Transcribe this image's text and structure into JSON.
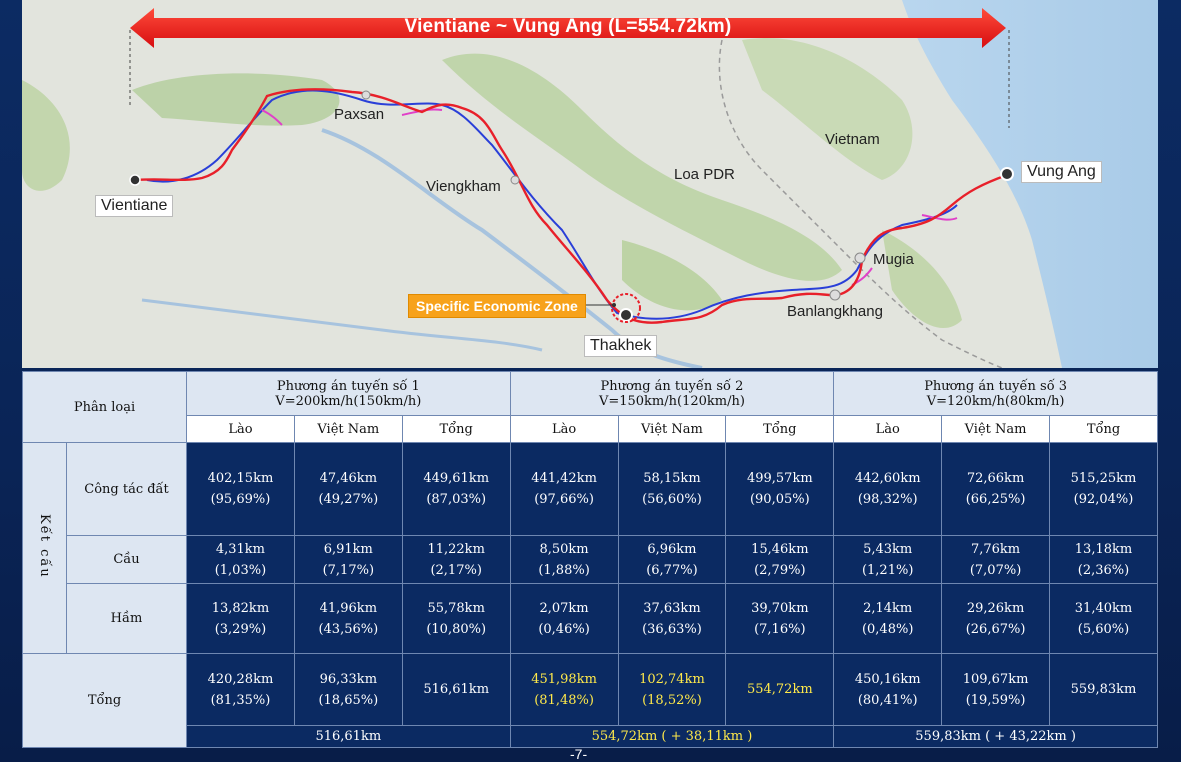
{
  "banner": {
    "text": "Vientiane ~ Vung Ang (L=554.72km)"
  },
  "places": {
    "vientiane": "Vientiane",
    "paxsan": "Paxsan",
    "viengkham": "Viengkham",
    "loa_pdr": "Loa PDR",
    "vietnam": "Vietnam",
    "vung_ang": "Vung Ang",
    "mugia": "Mugia",
    "banlangkhang": "Banlangkhang",
    "thakhek": "Thakhek",
    "sez": "Specific Economic Zone"
  },
  "table": {
    "category_header": "Phân loại",
    "options": [
      {
        "title": "Phương án tuyến số 1",
        "speed": "V=200km/h(150km/h)"
      },
      {
        "title": "Phương án tuyến số 2",
        "speed": "V=150km/h(120km/h)"
      },
      {
        "title": "Phương án tuyến số 3",
        "speed": "V=120km/h(80km/h)"
      }
    ],
    "subheaders": [
      "Lào",
      "Việt Nam",
      "Tổng"
    ],
    "structure_label": "Kết cấu",
    "rows": [
      {
        "label": "Công tác đất",
        "cells": [
          [
            "402,15km",
            "(95,69%)"
          ],
          [
            "47,46km",
            "(49,27%)"
          ],
          [
            "449,61km",
            "(87,03%)"
          ],
          [
            "441,42km",
            "(97,66%)"
          ],
          [
            "58,15km",
            "(56,60%)"
          ],
          [
            "499,57km",
            "(90,05%)"
          ],
          [
            "442,60km",
            "(98,32%)"
          ],
          [
            "72,66km",
            "(66,25%)"
          ],
          [
            "515,25km",
            "(92,04%)"
          ]
        ]
      },
      {
        "label": "Cầu",
        "cells": [
          [
            "4,31km",
            "(1,03%)"
          ],
          [
            "6,91km",
            "(7,17%)"
          ],
          [
            "11,22km",
            "(2,17%)"
          ],
          [
            "8,50km",
            "(1,88%)"
          ],
          [
            "6,96km",
            "(6,77%)"
          ],
          [
            "15,46km",
            "(2,79%)"
          ],
          [
            "5,43km",
            "(1,21%)"
          ],
          [
            "7,76km",
            "(7,07%)"
          ],
          [
            "13,18km",
            "(2,36%)"
          ]
        ]
      },
      {
        "label": "Hầm",
        "cells": [
          [
            "13,82km",
            "(3,29%)"
          ],
          [
            "41,96km",
            "(43,56%)"
          ],
          [
            "55,78km",
            "(10,80%)"
          ],
          [
            "2,07km",
            "(0,46%)"
          ],
          [
            "37,63km",
            "(36,63%)"
          ],
          [
            "39,70km",
            "(7,16%)"
          ],
          [
            "2,14km",
            "(0,48%)"
          ],
          [
            "29,26km",
            "(26,67%)"
          ],
          [
            "31,40km",
            "(5,60%)"
          ]
        ]
      }
    ],
    "total_label": "Tổng",
    "total_row": [
      [
        "420,28km",
        "(81,35%)"
      ],
      [
        "96,33km",
        "(18,65%)"
      ],
      [
        "516,61km",
        ""
      ],
      [
        "451,98km",
        "(81,48%)"
      ],
      [
        "102,74km",
        "(18,52%)"
      ],
      [
        "554,72km",
        ""
      ],
      [
        "450,16km",
        "(80,41%)"
      ],
      [
        "109,67km",
        "(19,59%)"
      ],
      [
        "559,83km",
        ""
      ]
    ],
    "summary": [
      "516,61km",
      "554,72km ( + 38,11km )",
      "559,83km ( + 43,22km )"
    ]
  },
  "page_number": "-7-",
  "colors": {
    "route_red": "#e8202a",
    "route_blue": "#2a3fd8",
    "route_magenta": "#e040c8",
    "table_navy": "#0b2a62",
    "highlight_yellow": "#ffe94a",
    "sez_orange": "#f7a21b"
  }
}
